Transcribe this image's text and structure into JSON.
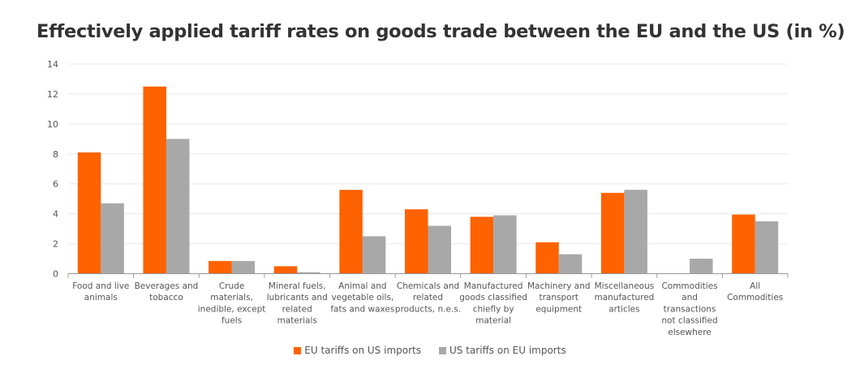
{
  "title": "Effectively applied tariff rates on goods trade between the EU and the US (in %)",
  "colors": {
    "eu": "#FF6200",
    "us": "#A8A8A8",
    "grid": "#E8E8E8",
    "axis": "#999999"
  },
  "chart_data": {
    "type": "bar",
    "title": "Effectively applied tariff rates on goods trade between the EU and the US (in %)",
    "xlabel": "",
    "ylabel": "",
    "ylim": [
      0,
      14
    ],
    "yticks": [
      0,
      2,
      4,
      6,
      8,
      10,
      12,
      14
    ],
    "grid": true,
    "legend_position": "bottom",
    "categories": [
      [
        "Food and live",
        "animals"
      ],
      [
        "Beverages and",
        "tobacco"
      ],
      [
        "Crude",
        "materials,",
        "inedible, except",
        "fuels"
      ],
      [
        "Mineral fuels,",
        "lubricants and",
        "related",
        "materials"
      ],
      [
        "Animal and",
        "vegetable oils,",
        "fats and waxes"
      ],
      [
        "Chemicals and",
        "related",
        "products, n.e.s."
      ],
      [
        "Manufactured",
        "goods classified",
        "chiefly by",
        "material"
      ],
      [
        "Machinery and",
        "transport",
        "equipment"
      ],
      [
        "Miscellaneous",
        "manufactured",
        "articles"
      ],
      [
        "Commodities",
        "and",
        "transactions",
        "not classified",
        "elsewhere"
      ],
      [
        "All",
        "Commodities"
      ]
    ],
    "series": [
      {
        "name": "EU tariffs on US imports",
        "color": "#FF6200",
        "values": [
          8.1,
          12.5,
          0.85,
          0.5,
          5.6,
          4.3,
          3.8,
          2.1,
          5.4,
          0.0,
          3.95
        ]
      },
      {
        "name": "US tariffs on EU imports",
        "color": "#A8A8A8",
        "values": [
          4.7,
          9.0,
          0.85,
          0.1,
          2.5,
          3.2,
          3.9,
          1.3,
          5.6,
          1.0,
          3.5
        ]
      }
    ]
  }
}
